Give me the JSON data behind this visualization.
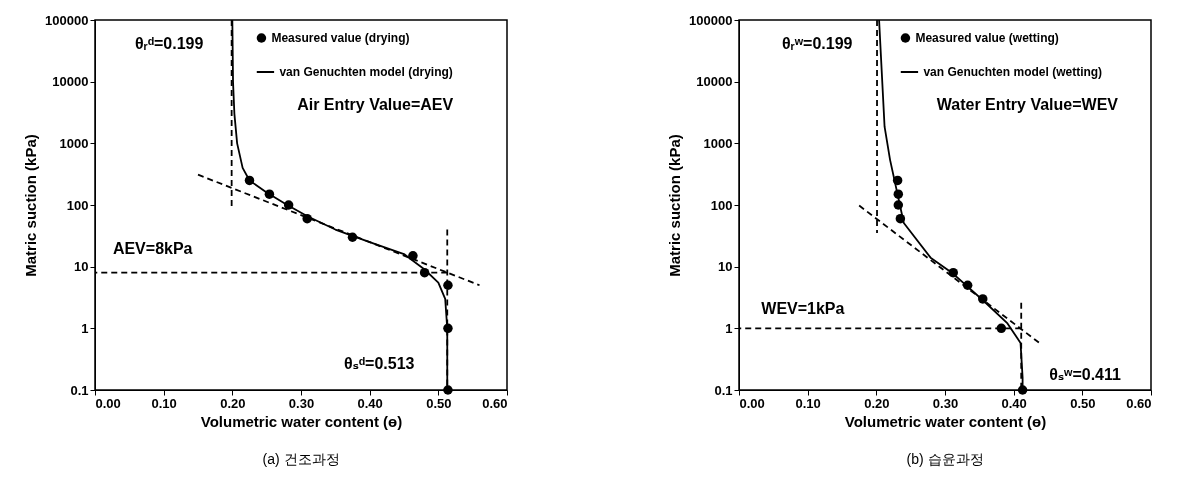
{
  "chart_data": [
    {
      "type": "scatter",
      "title": "(a) 건조과정",
      "xlabel": "Volumetric water content (ɵ)",
      "ylabel": "Matric suction (kPa)",
      "xlim": [
        0,
        0.6
      ],
      "ylim": [
        0.1,
        100000
      ],
      "log": "y",
      "legend": "top right",
      "grid": false,
      "xticks": [
        {
          "value": 0,
          "label": "0.00"
        },
        {
          "value": 0.1,
          "label": "0.10"
        },
        {
          "value": 0.2,
          "label": "0.20"
        },
        {
          "value": 0.3,
          "label": "0.30"
        },
        {
          "value": 0.4,
          "label": "0.40"
        },
        {
          "value": 0.5,
          "label": "0.50"
        },
        {
          "value": 0.6,
          "label": "0.60"
        }
      ],
      "yticks": [
        0.1,
        1,
        10,
        100,
        1000,
        10000,
        100000
      ],
      "series": [
        {
          "name": "Measured value (drying)",
          "type": "scatter",
          "marker": "circle",
          "color": "#000000",
          "x": [
            0.225,
            0.254,
            0.282,
            0.309,
            0.375,
            0.463,
            0.48,
            0.514,
            0.514,
            0.514
          ],
          "values": [
            250,
            150,
            100,
            60,
            30,
            15,
            8,
            5,
            1,
            0.1
          ]
        },
        {
          "name": "van Genuchten model (drying)",
          "type": "line",
          "line_style": "solid",
          "color": "#000000",
          "x": [
            0.2,
            0.201,
            0.203,
            0.207,
            0.215,
            0.225,
            0.25,
            0.28,
            0.31,
            0.35,
            0.4,
            0.45,
            0.48,
            0.5,
            0.51,
            0.513,
            0.513
          ],
          "values": [
            100000,
            10000,
            3000,
            1000,
            400,
            250,
            160,
            100,
            65,
            40,
            25,
            16,
            9,
            5.5,
            3,
            1,
            0.1
          ]
        },
        {
          "type": "line",
          "line_style": "dashed",
          "color": "#000000",
          "x": [
            0.199,
            0.199
          ],
          "values": [
            100000,
            90
          ]
        },
        {
          "type": "line",
          "line_style": "dashed",
          "color": "#000000",
          "x": [
            0.15,
            0.56
          ],
          "values": [
            310,
            5
          ]
        },
        {
          "type": "line",
          "line_style": "dashed",
          "color": "#000000",
          "x": [
            0.513,
            0
          ],
          "values": [
            8,
            8
          ]
        },
        {
          "type": "line",
          "line_style": "dashed",
          "color": "#000000",
          "x": [
            0.513,
            0.513
          ],
          "values": [
            40,
            0.1
          ]
        }
      ],
      "annotations": [
        "θᵣᵈ=0.199",
        "AEV=8kPa",
        "Air Entry Value=AEV",
        "θₛᵈ=0.513"
      ]
    },
    {
      "type": "scatter",
      "title": "(b) 습윤과정",
      "xlabel": "Volumetric water content (ɵ)",
      "ylabel": "Matric suction (kPa)",
      "xlim": [
        0,
        0.6
      ],
      "ylim": [
        0.1,
        100000
      ],
      "log": "y",
      "legend": "top right",
      "grid": false,
      "xticks": [
        {
          "value": 0,
          "label": "0.00"
        },
        {
          "value": 0.1,
          "label": "0.10"
        },
        {
          "value": 0.2,
          "label": "0.20"
        },
        {
          "value": 0.3,
          "label": "0.30"
        },
        {
          "value": 0.4,
          "label": "0.40"
        },
        {
          "value": 0.5,
          "label": "0.50"
        },
        {
          "value": 0.6,
          "label": "0.60"
        }
      ],
      "yticks": [
        0.1,
        1,
        10,
        100,
        1000,
        10000,
        100000
      ],
      "series": [
        {
          "name": "Measured value (wetting)",
          "type": "scatter",
          "marker": "circle",
          "color": "#000000",
          "x": [
            0.231,
            0.232,
            0.232,
            0.235,
            0.312,
            0.333,
            0.355,
            0.382,
            0.413
          ],
          "values": [
            250,
            150,
            100,
            60,
            8,
            5,
            3,
            1,
            0.1
          ]
        },
        {
          "name": "van Genuchten model (wetting)",
          "type": "line",
          "line_style": "solid",
          "color": "#000000",
          "x": [
            0.204,
            0.212,
            0.22,
            0.24,
            0.279,
            0.31,
            0.356,
            0.391,
            0.41,
            0.413,
            0.413
          ],
          "values": [
            100000,
            1860,
            540,
            51,
            14,
            8,
            2.8,
            1.2,
            0.58,
            0.16,
            0.1
          ]
        },
        {
          "type": "line",
          "line_style": "dashed",
          "color": "#000000",
          "x": [
            0.201,
            0.201
          ],
          "values": [
            100000,
            35
          ]
        },
        {
          "type": "line",
          "line_style": "dashed",
          "color": "#000000",
          "x": [
            0.175,
            0.441
          ],
          "values": [
            98,
            0.54
          ]
        },
        {
          "type": "line",
          "line_style": "dashed",
          "color": "#000000",
          "x": [
            0.411,
            0
          ],
          "values": [
            1,
            1
          ]
        },
        {
          "type": "line",
          "line_style": "dashed",
          "color": "#000000",
          "x": [
            0.411,
            0.411
          ],
          "values": [
            2.6,
            0.1
          ]
        }
      ],
      "annotations": [
        "θᵣʷ=0.199",
        "WEV=1kPa",
        "Water Entry Value=WEV",
        "θₛʷ=0.411"
      ]
    }
  ]
}
